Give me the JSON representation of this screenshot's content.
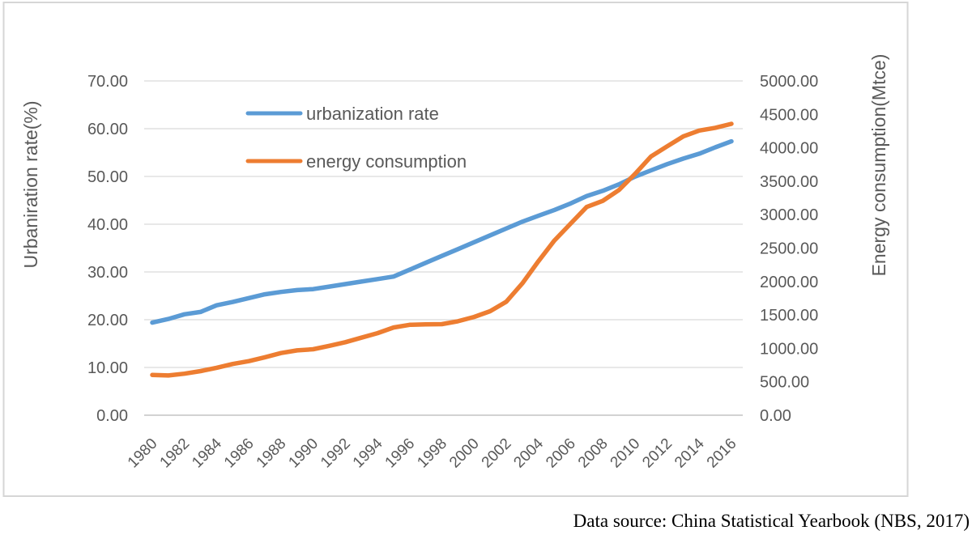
{
  "chart_data": {
    "type": "line",
    "title": "",
    "caption": "Data source: China Statistical Yearbook (NBS, 2017)",
    "grid": "horizontal",
    "gridline_color": "#d9d9d9",
    "background_color": "#ffffff",
    "legend_position": "inside-top-left",
    "x": [
      1980,
      1981,
      1982,
      1983,
      1984,
      1985,
      1986,
      1987,
      1988,
      1989,
      1990,
      1991,
      1992,
      1993,
      1994,
      1995,
      1996,
      1997,
      1998,
      1999,
      2000,
      2001,
      2002,
      2003,
      2004,
      2005,
      2006,
      2007,
      2008,
      2009,
      2010,
      2011,
      2012,
      2013,
      2014,
      2015,
      2016
    ],
    "x_tick_labels": [
      "1980",
      "1982",
      "1984",
      "1986",
      "1988",
      "1990",
      "1992",
      "1994",
      "1996",
      "1998",
      "2000",
      "2002",
      "2004",
      "2006",
      "2008",
      "2010",
      "2012",
      "2014",
      "2016"
    ],
    "left_axis": {
      "label": "Urbaniration rate(%)",
      "min": 0,
      "max": 70,
      "step": 10,
      "tick_labels": [
        "70.00",
        "60.00",
        "50.00",
        "40.00",
        "30.00",
        "20.00",
        "10.00",
        "0.00"
      ]
    },
    "right_axis": {
      "label": "Energy consumption(Mtce)",
      "min": 0,
      "max": 5000,
      "step": 500,
      "tick_labels": [
        "5000.00",
        "4500.00",
        "4000.00",
        "3500.00",
        "3000.00",
        "2500.00",
        "2000.00",
        "1500.00",
        "1000.00",
        "500.00",
        "0.00"
      ]
    },
    "series": [
      {
        "name": "urbanization rate",
        "axis": "left",
        "color": "#5b9bd5",
        "values": [
          19.39,
          20.16,
          21.13,
          21.62,
          23.01,
          23.71,
          24.52,
          25.32,
          25.81,
          26.21,
          26.41,
          26.94,
          27.46,
          27.99,
          28.51,
          29.04,
          30.48,
          31.91,
          33.35,
          34.78,
          36.22,
          37.66,
          39.09,
          40.53,
          41.76,
          42.99,
          44.34,
          45.89,
          46.99,
          48.34,
          49.95,
          51.27,
          52.57,
          53.73,
          54.77,
          56.1,
          57.35
        ]
      },
      {
        "name": "energy consumption",
        "axis": "right",
        "color": "#ed7d31",
        "values": [
          602.75,
          594.47,
          620.67,
          660.4,
          709.04,
          766.82,
          808.5,
          866.32,
          929.97,
          969.34,
          987.03,
          1037.83,
          1091.7,
          1159.93,
          1227.37,
          1311.76,
          1351.92,
          1359.09,
          1361.84,
          1405.69,
          1469.64,
          1555.47,
          1695.77,
          1970.83,
          2302.81,
          2613.69,
          2864.67,
          3114.42,
          3206.11,
          3366.47,
          3606.48,
          3870.43,
          4021.38,
          4169.13,
          4258.06,
          4299.05,
          4358.19
        ]
      }
    ]
  }
}
